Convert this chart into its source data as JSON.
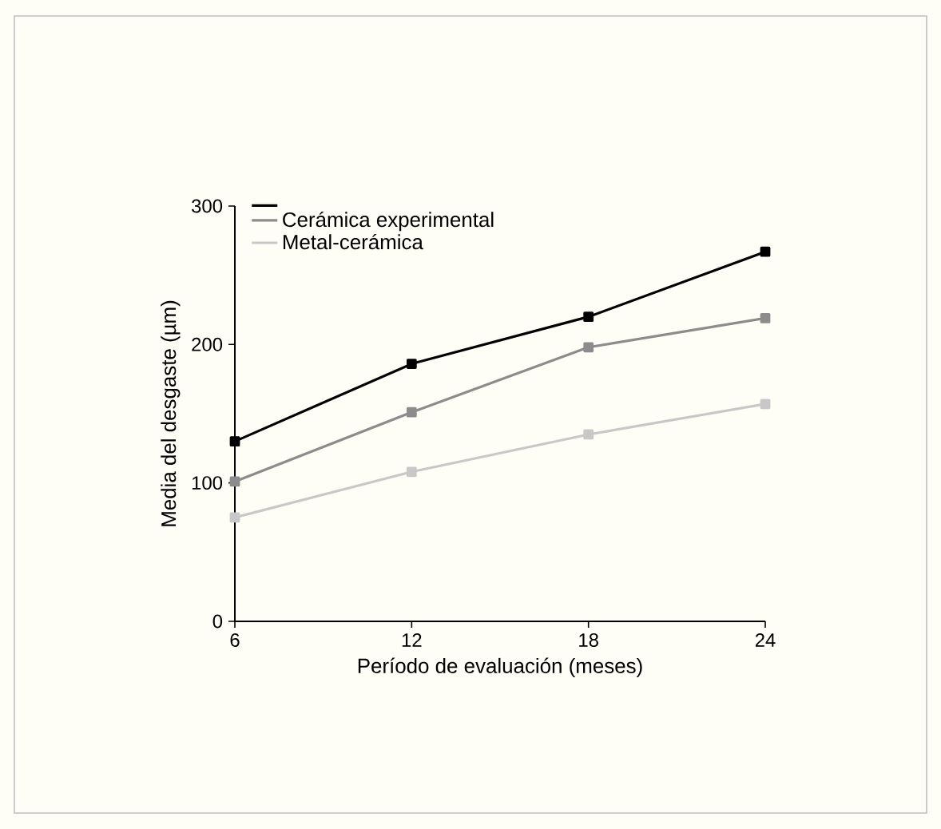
{
  "chart_data": {
    "type": "line",
    "xlabel": "Período de evaluación (meses)",
    "ylabel": "Media del desgaste (µm)",
    "x": [
      6,
      12,
      18,
      24
    ],
    "series": [
      {
        "color": "#000000",
        "values": [
          130,
          186,
          220,
          267
        ]
      },
      {
        "name": "Cerámica experimental",
        "color": "#8c8c8c",
        "values": [
          101,
          151,
          198,
          219
        ]
      },
      {
        "name": "Metal-cerámica",
        "color": "#c8c8c8",
        "values": [
          75,
          108,
          135,
          157
        ]
      }
    ],
    "xlim": [
      6,
      24
    ],
    "ylim": [
      0,
      300
    ],
    "xticks": [
      6,
      12,
      18,
      24
    ],
    "yticks": [
      0,
      100,
      200,
      300
    ],
    "legend": "top left",
    "marker": "square",
    "line_style": "solid"
  }
}
